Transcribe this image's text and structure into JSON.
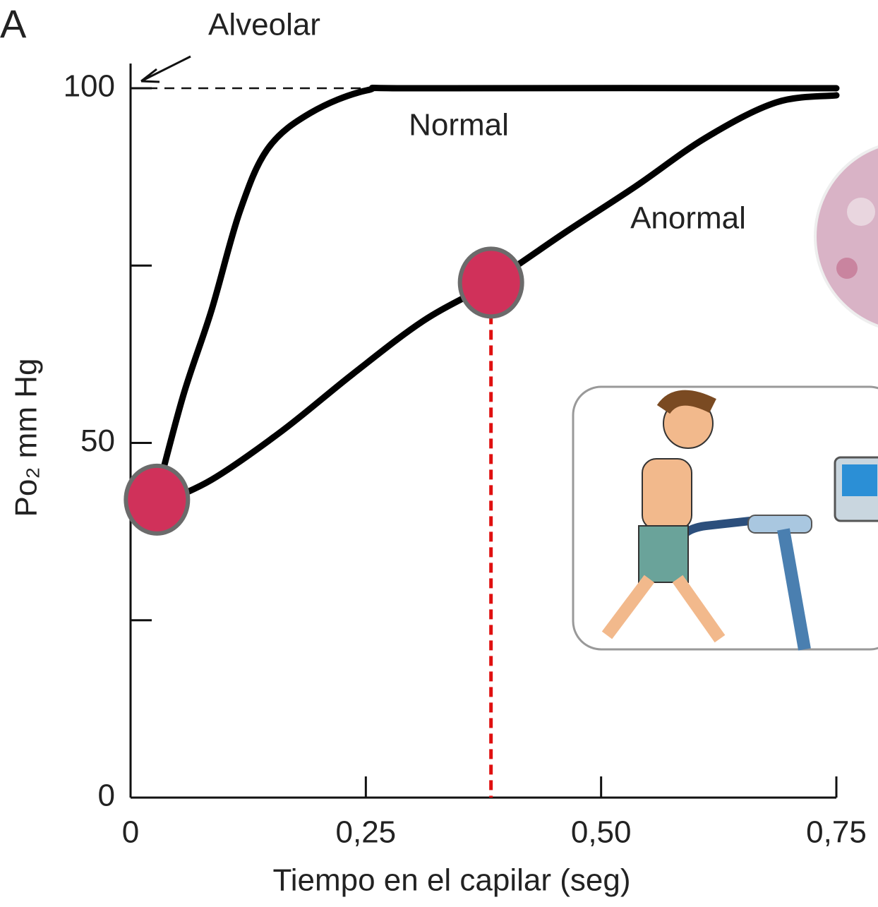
{
  "chart_data": {
    "type": "line",
    "panel_label": "A",
    "xlabel": "Tiempo en el capilar (seg)",
    "ylabel": "Po₂ mm Hg",
    "xlim": [
      0,
      0.75
    ],
    "ylim": [
      0,
      100
    ],
    "xticks": [
      0,
      {
        "value": 0.25,
        "label": "0,25"
      },
      {
        "value": 0.5,
        "label": "0,50"
      },
      {
        "value": 0.75,
        "label": "0,75"
      }
    ],
    "yticks": [
      0,
      {
        "value": 25,
        "label": null
      },
      50,
      {
        "value": 75,
        "label": null
      },
      100
    ],
    "reference_line": {
      "value": 100,
      "label": "Alveolar"
    },
    "series": [
      {
        "name": "Normal",
        "color": "#000000",
        "x": [
          0.028,
          0.056,
          0.086,
          0.116,
          0.146,
          0.191,
          0.251,
          0.311,
          0.75
        ],
        "values": [
          42.8,
          56.7,
          68.7,
          82.6,
          91.5,
          96.5,
          99.7,
          100,
          100
        ]
      },
      {
        "name": "Anormal",
        "color": "#000000",
        "x": [
          0.028,
          0.086,
          0.161,
          0.236,
          0.311,
          0.383,
          0.461,
          0.536,
          0.611,
          0.686,
          0.75
        ],
        "values": [
          41.3,
          44.8,
          51.7,
          59.7,
          67.2,
          72.6,
          79.6,
          86.1,
          93,
          98,
          99
        ]
      }
    ],
    "highlight_points": {
      "color": "#d0315a",
      "x": [
        0.028,
        0.383
      ],
      "values": [
        42,
        72.6
      ]
    }
  }
}
